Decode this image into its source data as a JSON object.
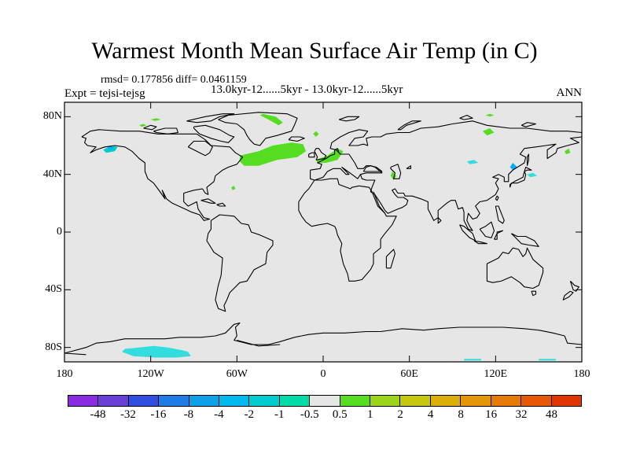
{
  "title": "Warmest Month Mean Surface Air Temp (in C)",
  "stats": "rmsd= 0.177856 diff= 0.0461159",
  "subtitle": "13.0kyr-12......5kyr - 13.0kyr-12......5kyr",
  "expt": "Expt = tejsi-tejsg",
  "season": "ANN",
  "map": {
    "projection": "cylindrical equidistant",
    "lon_range": [
      -180,
      180
    ],
    "lat_range": [
      -90,
      90
    ],
    "background_color": "#e6e6e6",
    "coastline_color": "#000000",
    "lat_ticks": [
      {
        "value": 80,
        "label": "80N"
      },
      {
        "value": 40,
        "label": "40N"
      },
      {
        "value": 0,
        "label": "0"
      },
      {
        "value": -40,
        "label": "40S"
      },
      {
        "value": -80,
        "label": "80S"
      }
    ],
    "lon_ticks": [
      {
        "value": -180,
        "label": "180"
      },
      {
        "value": -120,
        "label": "120W"
      },
      {
        "value": -60,
        "label": "60W"
      },
      {
        "value": 0,
        "label": "0"
      },
      {
        "value": 60,
        "label": "60E"
      },
      {
        "value": 120,
        "label": "120E"
      },
      {
        "value": 180,
        "label": "180"
      }
    ]
  },
  "anomaly_regions": [
    {
      "name": "north-atlantic-warming",
      "category": "0.5 to 1",
      "color": "#55dd22",
      "lonlat": [
        [
          -58,
          53
        ],
        [
          -45,
          56
        ],
        [
          -35,
          60
        ],
        [
          -22,
          62
        ],
        [
          -14,
          61
        ],
        [
          -12,
          56
        ],
        [
          -18,
          52
        ],
        [
          -32,
          50
        ],
        [
          -45,
          46
        ],
        [
          -55,
          46
        ],
        [
          -58,
          49
        ]
      ]
    },
    {
      "name": "norwegian-sea-warming",
      "category": "0.5 to 1",
      "color": "#55dd22",
      "lonlat": [
        [
          -5,
          50
        ],
        [
          3,
          53
        ],
        [
          10,
          58
        ],
        [
          14,
          56
        ],
        [
          10,
          50
        ],
        [
          2,
          48
        ],
        [
          -4,
          48
        ]
      ]
    },
    {
      "name": "greenland-warming",
      "category": "0.5 to 1",
      "color": "#55dd22",
      "lonlat": [
        [
          -42,
          82
        ],
        [
          -33,
          80
        ],
        [
          -28,
          76
        ],
        [
          -31,
          74
        ],
        [
          -38,
          78
        ],
        [
          -44,
          81
        ]
      ]
    },
    {
      "name": "arctic-canada-warming",
      "category": "0.5 to 1",
      "color": "#55dd22",
      "lonlat": [
        [
          -120,
          78
        ],
        [
          -116,
          79
        ],
        [
          -113,
          78
        ],
        [
          -117,
          77
        ]
      ]
    },
    {
      "name": "arctic-west-warming",
      "category": "0.5 to 1",
      "color": "#55dd22",
      "lonlat": [
        [
          -128,
          74
        ],
        [
          -125,
          75
        ],
        [
          -123,
          74
        ],
        [
          -126,
          73
        ]
      ]
    },
    {
      "name": "west-atlantic-warming",
      "category": "0.5 to 1",
      "color": "#55dd22",
      "lonlat": [
        [
          -64,
          31
        ],
        [
          -62,
          32
        ],
        [
          -61,
          30
        ],
        [
          -63,
          29
        ]
      ]
    },
    {
      "name": "caspian-warming",
      "category": "0.5 to 1",
      "color": "#55dd22",
      "lonlat": [
        [
          48,
          42
        ],
        [
          51,
          39
        ],
        [
          49,
          36
        ],
        [
          47,
          39
        ]
      ]
    },
    {
      "name": "barents-warming",
      "category": "0.5 to 1",
      "color": "#55dd22",
      "lonlat": [
        [
          -7,
          68
        ],
        [
          -5,
          70
        ],
        [
          -3,
          68
        ],
        [
          -5,
          66
        ]
      ]
    },
    {
      "name": "siberia-warming",
      "category": "0.5 to 1",
      "color": "#55dd22",
      "lonlat": [
        [
          113,
          81
        ],
        [
          116,
          82
        ],
        [
          119,
          81
        ],
        [
          116,
          80
        ]
      ]
    },
    {
      "name": "kamchatka-warming",
      "category": "0.5 to 1",
      "color": "#55dd22",
      "lonlat": [
        [
          168,
          56
        ],
        [
          171,
          58
        ],
        [
          172,
          55
        ],
        [
          169,
          54
        ]
      ]
    },
    {
      "name": "east-asia-warming",
      "category": "0.5 to 1",
      "color": "#55dd22",
      "lonlat": [
        [
          111,
          70
        ],
        [
          116,
          72
        ],
        [
          119,
          69
        ],
        [
          114,
          67
        ]
      ]
    },
    {
      "name": "alaska-cooling",
      "category": "-0.5 to -1",
      "color": "#00cccc",
      "lonlat": [
        [
          -153,
          57
        ],
        [
          -148,
          60
        ],
        [
          -143,
          59
        ],
        [
          -145,
          56
        ],
        [
          -151,
          55
        ]
      ]
    },
    {
      "name": "alaska-cooling-core",
      "category": "-2 to -1",
      "color": "#00aaff",
      "lonlat": [
        [
          -150,
          59
        ],
        [
          -147,
          60
        ],
        [
          -146,
          58
        ],
        [
          -149,
          57
        ]
      ]
    },
    {
      "name": "antarctic-cooling",
      "category": "-0.5 to -1",
      "color": "#33dddd",
      "lonlat": [
        [
          -138,
          -81
        ],
        [
          -128,
          -80
        ],
        [
          -118,
          -79
        ],
        [
          -108,
          -80
        ],
        [
          -98,
          -82
        ],
        [
          -94,
          -83
        ],
        [
          -92,
          -86
        ],
        [
          -102,
          -87
        ],
        [
          -117,
          -87
        ],
        [
          -132,
          -86
        ],
        [
          -140,
          -83
        ]
      ]
    },
    {
      "name": "west-pacific-cooling",
      "category": "-0.5 to -1",
      "color": "#33dddd",
      "lonlat": [
        [
          142,
          40
        ],
        [
          146,
          41
        ],
        [
          149,
          39
        ],
        [
          144,
          38
        ]
      ]
    },
    {
      "name": "central-asia-cooling",
      "category": "-0.5 to -1",
      "color": "#33dddd",
      "lonlat": [
        [
          100,
          49
        ],
        [
          105,
          50
        ],
        [
          108,
          48
        ],
        [
          102,
          47
        ]
      ]
    },
    {
      "name": "japan-cooling",
      "category": "-2 to -1",
      "color": "#00aaff",
      "lonlat": [
        [
          130,
          45
        ],
        [
          132,
          48
        ],
        [
          135,
          45
        ],
        [
          132,
          43
        ]
      ]
    },
    {
      "name": "pacific-antarctic-cooling",
      "category": "-0.5 to -1",
      "color": "#33dddd",
      "lonlat": [
        [
          150,
          -89
        ],
        [
          162,
          -89
        ],
        [
          162,
          -88
        ],
        [
          150,
          -88
        ]
      ]
    },
    {
      "name": "indian-antarctic-cooling",
      "category": "-0.5 to -1",
      "color": "#33dddd",
      "lonlat": [
        [
          98,
          -89
        ],
        [
          110,
          -89
        ],
        [
          110,
          -88
        ],
        [
          98,
          -88
        ]
      ]
    }
  ],
  "colorbar": {
    "colors": [
      "#8a2be2",
      "#6a3fd8",
      "#2f4fe0",
      "#1f7be6",
      "#0fa0ea",
      "#00b9ee",
      "#00cdd0",
      "#00dca8",
      "#e6e6e6",
      "#55dd22",
      "#9ad51a",
      "#c6c80f",
      "#dcae0a",
      "#e59508",
      "#e67a07",
      "#e65806",
      "#e03500"
    ],
    "labels": [
      "-48",
      "-32",
      "-16",
      "-8",
      "-4",
      "-2",
      "-1",
      "-0.5",
      "0.5",
      "1",
      "2",
      "4",
      "8",
      "16",
      "32",
      "48"
    ]
  }
}
